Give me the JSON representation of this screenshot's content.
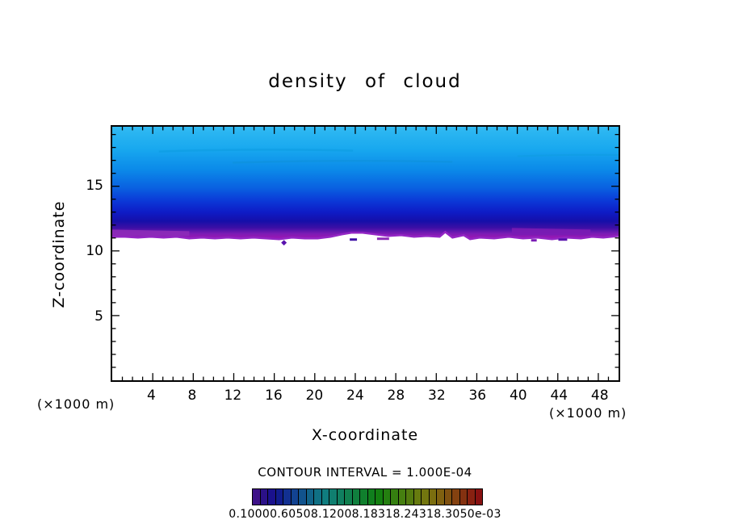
{
  "title": "density of cloud",
  "y_axis": {
    "label": "Z-coordinate",
    "unit": "(×1000 m)",
    "ticks": [
      15,
      10,
      5
    ],
    "max": 19.6
  },
  "x_axis": {
    "label": "X-coordinate",
    "unit": "(×1000 m)",
    "ticks": [
      4,
      8,
      12,
      16,
      20,
      24,
      28,
      32,
      36,
      40,
      44,
      48
    ],
    "max": 50
  },
  "contour_caption": "CONTOUR INTERVAL = 1.000E-04",
  "plot": {
    "cloud_palette": [
      "#31baf2",
      "#18a8ef",
      "#0b8ae9",
      "#0a62e1",
      "#0b38d7",
      "#0e1cc6",
      "#150fa9",
      "#3d0fa5",
      "#7a1cb4",
      "#a315b5"
    ],
    "background": "#ffffff",
    "frame_color": "#000000"
  },
  "colorbar": {
    "labels_text": "0.10000.60508.12008.18318.24318.3050e-03",
    "segment_colors": [
      "hsl(262,78%,30%)",
      "hsl(253,78%,30%)",
      "hsl(244,78%,31%)",
      "hsl(235,78%,31%)",
      "hsl(226,78%,32%)",
      "hsl(217,78%,32%)",
      "hsl(208,78%,31%)",
      "hsl(199,78%,30%)",
      "hsl(190,78%,29%)",
      "hsl(181,78%,28%)",
      "hsl(172,78%,28%)",
      "hsl(163,78%,28%)",
      "hsl(154,78%,28%)",
      "hsl(145,78%,28%)",
      "hsl(136,78%,28%)",
      "hsl(127,78%,28%)",
      "hsl(118,78%,28%)",
      "hsl(109,78%,28%)",
      "hsl(100,78%,28%)",
      "hsl(91,78%,28%)",
      "hsl(82,78%,27%)",
      "hsl(71,78%,27%)",
      "hsl(62,78%,26%)",
      "hsl(53,78%,27%)",
      "hsl(44,78%,28%)",
      "hsl(35,78%,28%)",
      "hsl(26,78%,29%)",
      "hsl(17,78%,29%)",
      "hsl(8,78%,30%)",
      "hsl(0,78%,30%)"
    ]
  },
  "chart_data": {
    "type": "heatmap",
    "subtype": "filled-contour",
    "title": "density of cloud",
    "xlabel": "X-coordinate",
    "ylabel": "Z-coordinate",
    "x_unit_label": "(×1000 m)",
    "y_unit_label": "(×1000 m)",
    "xlim": [
      0,
      50
    ],
    "ylim": [
      0,
      19.6
    ],
    "x_ticks": [
      4,
      8,
      12,
      16,
      20,
      24,
      28,
      32,
      36,
      40,
      44,
      48
    ],
    "y_ticks": [
      5,
      10,
      15
    ],
    "grid": false,
    "legend_position": "bottom-colorbar",
    "contour_interval": 0.0001,
    "contour_caption": "CONTOUR INTERVAL = 1.000E-04",
    "colorbar_labels_text_as_rendered": "0.10000.60508.12008.18318.24318.3050e-03",
    "description": "Horizontally uniform cloud layer spanning the full x range; cloud density increases downward from cloud top (cyan, ~1e-4) near z=19.6 to cloud base (dark blue then purple/magenta, ~3e-3) near z=11.5; clear air (white) below z≈11.4.",
    "vertical_profile": [
      {
        "z": 19.5,
        "density": 0.0001
      },
      {
        "z": 18.0,
        "density": 0.0003
      },
      {
        "z": 16.5,
        "density": 0.0006
      },
      {
        "z": 15.0,
        "density": 0.001
      },
      {
        "z": 14.0,
        "density": 0.0015
      },
      {
        "z": 13.0,
        "density": 0.0021
      },
      {
        "z": 12.3,
        "density": 0.0026
      },
      {
        "z": 11.6,
        "density": 0.003
      },
      {
        "z": 11.4,
        "density": 0.0
      }
    ]
  }
}
